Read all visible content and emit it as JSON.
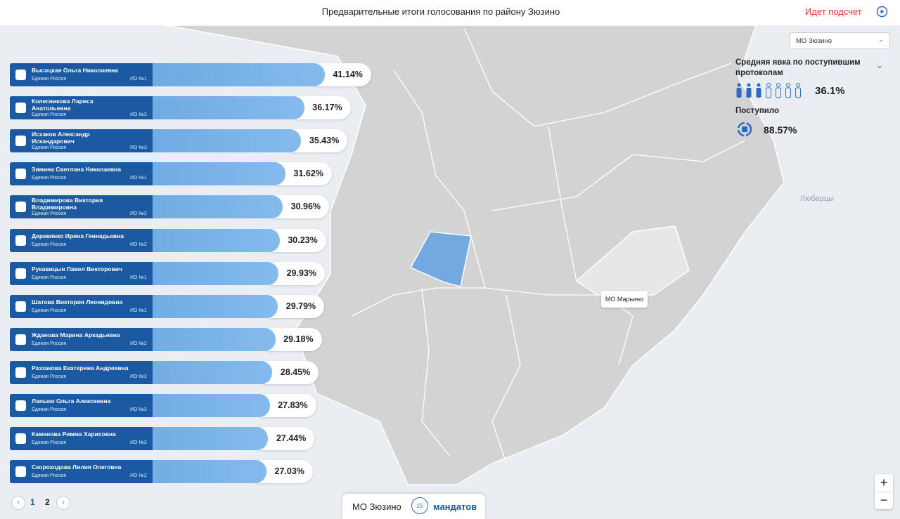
{
  "header": {
    "title": "Предварительные итоги голосования по району Зюзино",
    "status": "Идет подсчет"
  },
  "candidates": [
    {
      "name": "Высоцкая Ольга Николаевна",
      "party": "Единая Россия",
      "district": "ИО №1",
      "value": 41.14,
      "value_label": "41.14%"
    },
    {
      "name": "Колесникова Лариса Анатольевна",
      "party": "Единая Россия",
      "district": "ИО №3",
      "value": 36.17,
      "value_label": "36.17%"
    },
    {
      "name": "Исхаков Александр Искандарович",
      "party": "Единая Россия",
      "district": "ИО №3",
      "value": 35.43,
      "value_label": "35.43%"
    },
    {
      "name": "Зимина Светлана Николаевна",
      "party": "Единая Россия",
      "district": "ИО №1",
      "value": 31.62,
      "value_label": "31.62%"
    },
    {
      "name": "Владимирова Виктория Владимировна",
      "party": "Единая Россия",
      "district": "ИО №2",
      "value": 30.96,
      "value_label": "30.96%"
    },
    {
      "name": "Деревянко Ирина Геннадьевна",
      "party": "Единая Россия",
      "district": "ИО №2",
      "value": 30.23,
      "value_label": "30.23%"
    },
    {
      "name": "Рукавицын Павел Викторович",
      "party": "Единая Россия",
      "district": "ИО №1",
      "value": 29.93,
      "value_label": "29.93%"
    },
    {
      "name": "Шатова Виктория Леонидовна",
      "party": "Единая Россия",
      "district": "ИО №1",
      "value": 29.79,
      "value_label": "29.79%"
    },
    {
      "name": "Жданова Марина Аркадьевна",
      "party": "Единая Россия",
      "district": "ИО №2",
      "value": 29.18,
      "value_label": "29.18%"
    },
    {
      "name": "Раззакова Екатерина Андреевна",
      "party": "Единая Россия",
      "district": "ИО №3",
      "value": 28.45,
      "value_label": "28.45%"
    },
    {
      "name": "Лапыко Ольга Алексеевна",
      "party": "Единая Россия",
      "district": "ИО №3",
      "value": 27.83,
      "value_label": "27.83%"
    },
    {
      "name": "Каменова Римма Харисовна",
      "party": "Единая Россия",
      "district": "ИО №2",
      "value": 27.44,
      "value_label": "27.44%"
    },
    {
      "name": "Скороходова Лилия Олеговна",
      "party": "Единая Россия",
      "district": "ИО №2",
      "value": 27.03,
      "value_label": "27.03%"
    }
  ],
  "pagination": {
    "pages": [
      "1",
      "2"
    ]
  },
  "panel": {
    "district_select": "МО Зюзино",
    "turnout_title": "Средняя явка по поступившим протоколам",
    "turnout_label": "36.1%",
    "received_title": "Поступило",
    "received_label": "88.57%"
  },
  "map": {
    "labels": [
      "МО Марьино",
      "Люберцы"
    ]
  },
  "footer": {
    "district": "МО Зюзино",
    "mandates": "15",
    "mandates_label": "мандатов"
  }
}
